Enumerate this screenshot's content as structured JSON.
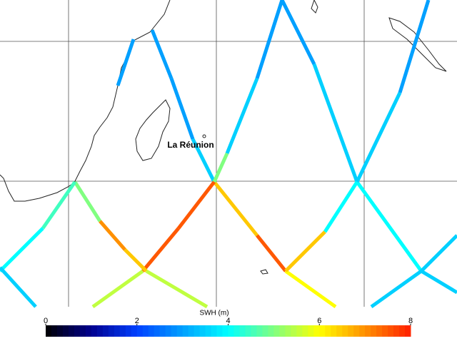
{
  "map": {
    "place_label": "La Réunion",
    "colorbar": {
      "label": "SWH (m)",
      "lim": [
        0,
        8
      ],
      "ticks": [
        0,
        2,
        4,
        6,
        8
      ],
      "colormap": [
        "#000000",
        "#00008f",
        "#0040ff",
        "#00a0ff",
        "#00ffff",
        "#80ff80",
        "#ffff00",
        "#ff9000",
        "#ff2000"
      ]
    },
    "tracks": [
      {
        "swh": [
          3,
          3,
          3.5,
          6.5,
          7.5,
          6
        ]
      },
      {
        "swh": [
          3,
          3.5,
          5,
          7.5,
          7.5,
          5.5
        ]
      },
      {
        "swh": [
          3
        ]
      },
      {
        "swh": [
          5,
          7,
          6.5,
          5.5,
          5
        ]
      },
      {
        "swh": [
          4.5,
          4
        ]
      },
      {
        "swh": [
          3.5
        ]
      },
      {
        "swh": [
          3,
          3.5,
          4,
          3.5
        ]
      },
      {
        "swh": [
          3,
          3.5,
          4,
          6.5,
          5.5
        ]
      },
      {
        "swh": [
          3.5,
          3.5
        ]
      }
    ]
  }
}
